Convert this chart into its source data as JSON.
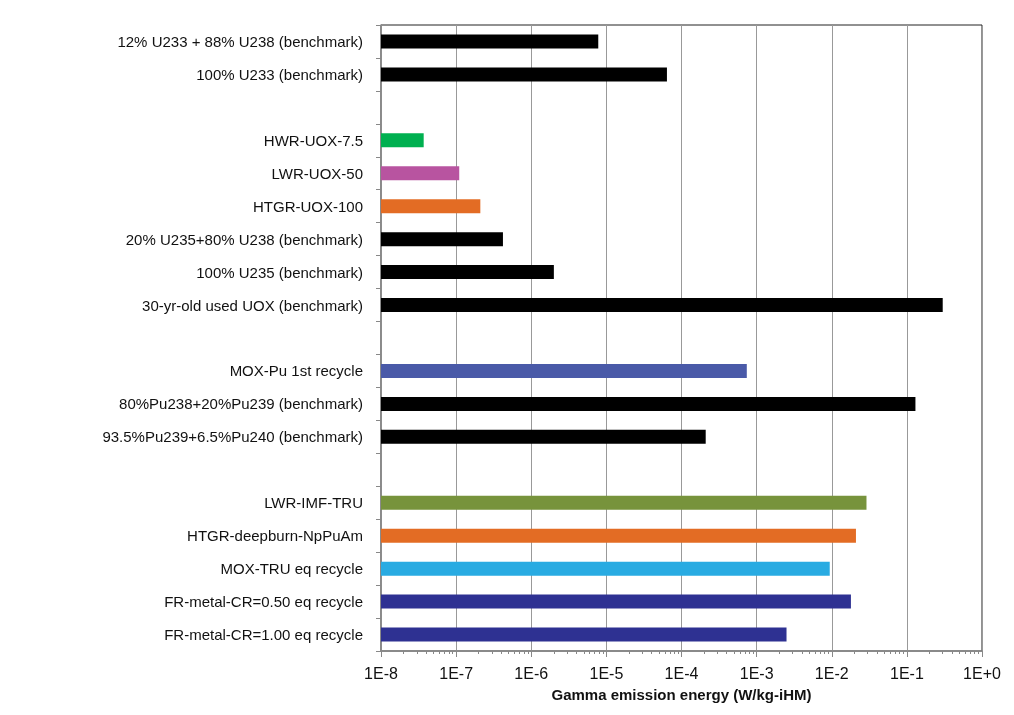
{
  "chart_data": {
    "type": "bar",
    "orientation": "horizontal",
    "log": "x",
    "grid": "x",
    "xlabel": "Gamma emission energy (W/kg-iHM)",
    "categories": [
      "12% U233 + 88% U238 (benchmark)",
      "100% U233 (benchmark)",
      null,
      "HWR-UOX-7.5",
      "LWR-UOX-50",
      "HTGR-UOX-100",
      "20% U235+80% U238 (benchmark)",
      "100% U235 (benchmark)",
      "30-yr-old used UOX (benchmark)",
      null,
      "MOX-Pu 1st recycle",
      "80%Pu238+20%Pu239 (benchmark)",
      "93.5%Pu239+6.5%Pu240 (benchmark)",
      null,
      "LWR-IMF-TRU",
      "HTGR-deepburn-NpPuAm",
      "MOX-TRU eq recycle",
      "FR-metal-CR=0.50 eq recycle",
      "FR-metal-CR=1.00 eq recycle"
    ],
    "values": [
      7.8e-06,
      6.4e-05,
      null,
      3.7e-08,
      1.1e-07,
      2.1e-07,
      4.2e-07,
      2e-06,
      0.3,
      null,
      0.00074,
      0.13,
      0.00021,
      null,
      0.029,
      0.021,
      0.0094,
      0.018,
      0.0025
    ],
    "colors": [
      "#000000",
      "#000000",
      null,
      "#00b050",
      "#b854a0",
      "#e36c24",
      "#000000",
      "#000000",
      "#000000",
      null,
      "#4a5aa8",
      "#000000",
      "#000000",
      null,
      "#77933c",
      "#e36c24",
      "#29abe2",
      "#2e3192",
      "#2e3192"
    ],
    "xlim": [
      1e-08,
      1
    ],
    "xticks": [
      {
        "value": 1e-08,
        "label": "1E-8"
      },
      {
        "value": 1e-07,
        "label": "1E-7"
      },
      {
        "value": 1e-06,
        "label": "1E-6"
      },
      {
        "value": 1e-05,
        "label": "1E-5"
      },
      {
        "value": 0.0001,
        "label": "1E-4"
      },
      {
        "value": 0.001,
        "label": "1E-3"
      },
      {
        "value": 0.01,
        "label": "1E-2"
      },
      {
        "value": 0.1,
        "label": "1E-1"
      },
      {
        "value": 1,
        "label": "1E+0"
      }
    ]
  }
}
